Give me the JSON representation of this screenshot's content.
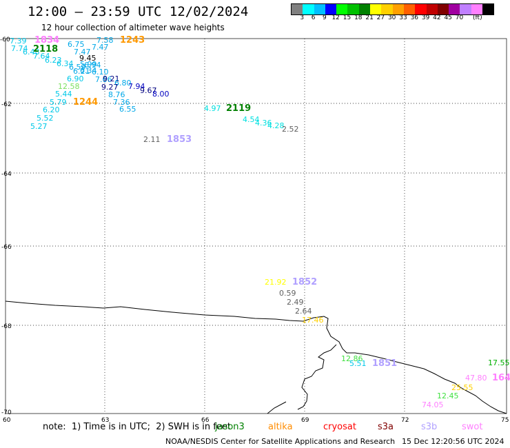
{
  "header": {
    "title": "12:00 – 23:59 UTC 12/02/2024",
    "subtitle": "12 hour collection of altimeter wave heights"
  },
  "legend": {
    "colors": [
      "#808080",
      "#00ffff",
      "#00bfff",
      "#0000ff",
      "#00ff00",
      "#00c000",
      "#008000",
      "#ffff00",
      "#ffd000",
      "#ffa000",
      "#ff6000",
      "#ff0000",
      "#c00000",
      "#800000",
      "#a000a0",
      "#c080ff",
      "#ff80ff",
      "#000000"
    ],
    "labels": [
      "3",
      "6",
      "9",
      "12",
      "15",
      "18",
      "21",
      "27",
      "30",
      "33",
      "36",
      "39",
      "42",
      "45",
      "70",
      "(ft)"
    ]
  },
  "axes": {
    "lon_ticks": [
      "60",
      "63",
      "66",
      "69",
      "72",
      "75"
    ],
    "lat_ticks": [
      "-60",
      "-62",
      "-64",
      "-66",
      "-68",
      "-70"
    ]
  },
  "markers": {
    "t1834": "1834",
    "t2118": "2118",
    "t1243": "1243",
    "t1244": "1244",
    "t2119": "2119",
    "t1853": "1853",
    "t1852": "1852",
    "t1851": "1851",
    "t164": "164"
  },
  "wave_heights": {
    "v739": "7.39",
    "v774": "7.74",
    "v648": "6.48",
    "v764": "7.64",
    "v675": "6.75",
    "v758": "7.58",
    "v747": "7.47",
    "v747b": "7.47",
    "v623": "6.23",
    "v634": "6.34",
    "v945": "9.45",
    "v694": "6.94",
    "v659": "6.59",
    "v599": "5.99",
    "v621": "6.21",
    "v634b": "6.34",
    "v610": "6.10",
    "v766": "7.66",
    "v921": "9.21",
    "v690": "6.90",
    "v680": "6.80",
    "v794": "7.94",
    "v927": "9.27",
    "v967": "9.67",
    "v800": "8.00",
    "v1258": "12.58",
    "v544": "5.44",
    "v876": "8.76",
    "v579": "5.79",
    "v736": "7.36",
    "v620": "6.20",
    "v655": "6.55",
    "v552": "5.52",
    "v527": "5.27",
    "v497": "4.97",
    "v454": "4.54",
    "v436": "4.36",
    "v428": "4.28",
    "v252": "2.52",
    "v211": "2.11",
    "v2192": "21.92",
    "v059": "0.59",
    "v249": "2.49",
    "v264": "2.64",
    "v1746": "17.46",
    "v1286": "12.86",
    "v551": "5.51",
    "v1755": "17.55",
    "v4780": "47.80",
    "v2555": "25.55",
    "v1245": "12.45",
    "v7405": "74.05"
  },
  "footer": {
    "note": "note:  1) Time is in UTC;  2) SWH is in feet",
    "satellites": [
      {
        "name": "jason3",
        "color": "#008000"
      },
      {
        "name": "altika",
        "color": "#ff8c00"
      },
      {
        "name": "cryosat",
        "color": "#ff0000"
      },
      {
        "name": "s3a",
        "color": "#800000"
      },
      {
        "name": "s3b",
        "color": "#b0a0ff"
      },
      {
        "name": "swot",
        "color": "#ff80ff"
      }
    ],
    "credit": "NOAA/NESDIS Center for Satellite Applications and Research",
    "date": "15 Dec 12:20:56 UTC 2024"
  }
}
